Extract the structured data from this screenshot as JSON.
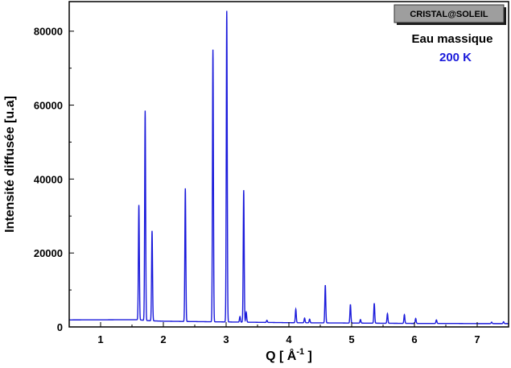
{
  "chart_data": {
    "type": "line",
    "badge": "CRISTAL@SOLEIL",
    "annotation_sample": "Eau massique",
    "annotation_temperature": "200 K",
    "xlabel": "Q [ Å",
    "xlabel_superscript": "-1",
    "xlabel_suffix": " ]",
    "ylabel": "Intensité diffusée [u.a]",
    "xlim": [
      0.5,
      7.5
    ],
    "ylim": [
      0,
      88000
    ],
    "x_ticks": [
      1,
      2,
      3,
      4,
      5,
      6,
      7
    ],
    "y_ticks": [
      0,
      20000,
      40000,
      60000,
      80000
    ],
    "grid": false,
    "line_color": "#1a1adb",
    "annotation_color": "#1a1adb",
    "baseline": [
      [
        0.5,
        1900
      ],
      [
        1.5,
        1950
      ],
      [
        1.6,
        1950
      ],
      [
        1.75,
        1700
      ],
      [
        2.0,
        1550
      ],
      [
        2.5,
        1450
      ],
      [
        3.0,
        1350
      ],
      [
        3.5,
        1250
      ],
      [
        4.0,
        1150
      ],
      [
        4.5,
        1100
      ],
      [
        5.0,
        1050
      ],
      [
        5.5,
        1000
      ],
      [
        6.0,
        950
      ],
      [
        6.5,
        950
      ],
      [
        7.0,
        900
      ],
      [
        7.5,
        900
      ]
    ],
    "peaks": [
      {
        "x": 1.61,
        "y": 33000
      },
      {
        "x": 1.71,
        "y": 58500
      },
      {
        "x": 1.82,
        "y": 26000
      },
      {
        "x": 2.35,
        "y": 37500
      },
      {
        "x": 2.79,
        "y": 75000
      },
      {
        "x": 3.01,
        "y": 85500
      },
      {
        "x": 3.22,
        "y": 2800
      },
      {
        "x": 3.28,
        "y": 37000
      },
      {
        "x": 3.32,
        "y": 4000
      },
      {
        "x": 3.65,
        "y": 1800
      },
      {
        "x": 4.11,
        "y": 4800
      },
      {
        "x": 4.25,
        "y": 2400
      },
      {
        "x": 4.33,
        "y": 2100
      },
      {
        "x": 4.58,
        "y": 11300
      },
      {
        "x": 4.98,
        "y": 6100
      },
      {
        "x": 5.14,
        "y": 2000
      },
      {
        "x": 5.36,
        "y": 6400
      },
      {
        "x": 5.57,
        "y": 3600
      },
      {
        "x": 5.84,
        "y": 3300
      },
      {
        "x": 6.02,
        "y": 2300
      },
      {
        "x": 6.35,
        "y": 1900
      },
      {
        "x": 7.23,
        "y": 1300
      },
      {
        "x": 7.42,
        "y": 1400
      }
    ]
  }
}
